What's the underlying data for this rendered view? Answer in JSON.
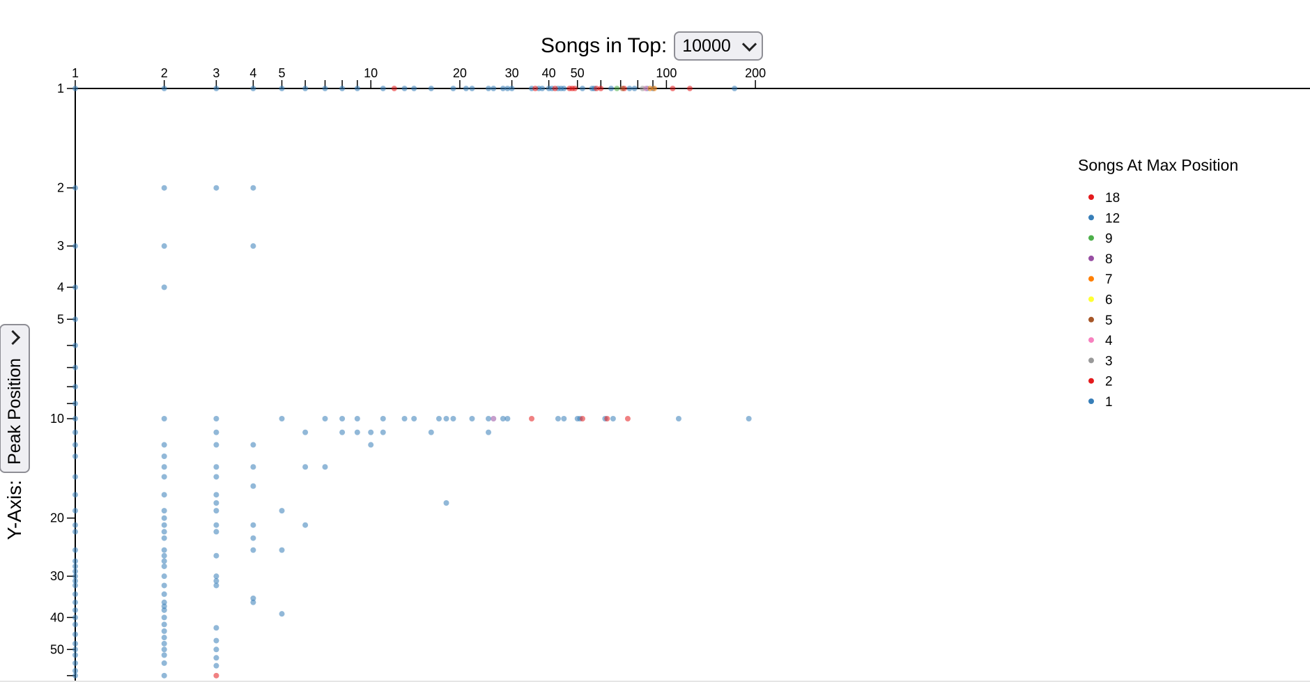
{
  "controls": {
    "top_label": "Songs in Top:",
    "top_value": "10000",
    "side_label": "Y-Axis:",
    "side_value": "Peak Position"
  },
  "chart_data": {
    "type": "scatter",
    "title": "",
    "xlabel": "",
    "ylabel": "Peak Position",
    "x_scale": "log",
    "y_scale": "log",
    "xlim": [
      1,
      200
    ],
    "ylim": [
      1,
      60
    ],
    "x_ticks_labeled": [
      1,
      2,
      3,
      4,
      5,
      10,
      20,
      30,
      40,
      50,
      100,
      200
    ],
    "x_ticks_minor": [
      6,
      7,
      8,
      9,
      60,
      70,
      80,
      90
    ],
    "y_ticks_labeled": [
      1,
      2,
      3,
      4,
      5,
      10,
      20,
      30,
      40,
      50
    ],
    "y_ticks_minor": [
      6,
      7,
      8,
      9,
      60
    ],
    "legend": {
      "title": "Songs At Max Position",
      "placement": "right",
      "entries": [
        {
          "label": "18",
          "color": "#e41a1c"
        },
        {
          "label": "12",
          "color": "#377eb8"
        },
        {
          "label": "9",
          "color": "#4daf4a"
        },
        {
          "label": "8",
          "color": "#984ea3"
        },
        {
          "label": "7",
          "color": "#ff7f00"
        },
        {
          "label": "6",
          "color": "#ffff33"
        },
        {
          "label": "5",
          "color": "#a65628"
        },
        {
          "label": "4",
          "color": "#f781bf"
        },
        {
          "label": "3",
          "color": "#999999"
        },
        {
          "label": "2",
          "color": "#e41a1c"
        },
        {
          "label": "1",
          "color": "#377eb8"
        }
      ]
    },
    "series": [
      {
        "group": "1",
        "color": "#377eb8",
        "points": [
          [
            1,
            1
          ],
          [
            2,
            1
          ],
          [
            3,
            1
          ],
          [
            4,
            1
          ],
          [
            5,
            1
          ],
          [
            6,
            1
          ],
          [
            7,
            1
          ],
          [
            8,
            1
          ],
          [
            9,
            1
          ],
          [
            11,
            1
          ],
          [
            13,
            1
          ],
          [
            14,
            1
          ],
          [
            16,
            1
          ],
          [
            19,
            1
          ],
          [
            21,
            1
          ],
          [
            22,
            1
          ],
          [
            25,
            1
          ],
          [
            26,
            1
          ],
          [
            28,
            1
          ],
          [
            29,
            1
          ],
          [
            30,
            1
          ],
          [
            35,
            1
          ],
          [
            37,
            1
          ],
          [
            38,
            1
          ],
          [
            40,
            1
          ],
          [
            41,
            1
          ],
          [
            43,
            1
          ],
          [
            44,
            1
          ],
          [
            45,
            1
          ],
          [
            52,
            1
          ],
          [
            56,
            1
          ],
          [
            57,
            1
          ],
          [
            65,
            1
          ],
          [
            75,
            1
          ],
          [
            78,
            1
          ],
          [
            86,
            1
          ],
          [
            90,
            1
          ],
          [
            170,
            1
          ],
          [
            1,
            2
          ],
          [
            1,
            3
          ],
          [
            1,
            4
          ],
          [
            1,
            5
          ],
          [
            1,
            6
          ],
          [
            1,
            7
          ],
          [
            1,
            8
          ],
          [
            1,
            9
          ],
          [
            1,
            10
          ],
          [
            1,
            11
          ],
          [
            1,
            12
          ],
          [
            1,
            13
          ],
          [
            1,
            15
          ],
          [
            1,
            17
          ],
          [
            1,
            19
          ],
          [
            1,
            21
          ],
          [
            1,
            22
          ],
          [
            1,
            25
          ],
          [
            1,
            27
          ],
          [
            1,
            28
          ],
          [
            1,
            29
          ],
          [
            1,
            30
          ],
          [
            1,
            31
          ],
          [
            1,
            32
          ],
          [
            1,
            34
          ],
          [
            1,
            36
          ],
          [
            1,
            38
          ],
          [
            1,
            40
          ],
          [
            1,
            42
          ],
          [
            1,
            45
          ],
          [
            1,
            48
          ],
          [
            1,
            50
          ],
          [
            1,
            52
          ],
          [
            1,
            55
          ],
          [
            1,
            58
          ],
          [
            1,
            60
          ],
          [
            2,
            2
          ],
          [
            2,
            3
          ],
          [
            2,
            4
          ],
          [
            2,
            10
          ],
          [
            2,
            12
          ],
          [
            2,
            13
          ],
          [
            2,
            14
          ],
          [
            2,
            15
          ],
          [
            2,
            17
          ],
          [
            2,
            19
          ],
          [
            2,
            20
          ],
          [
            2,
            21
          ],
          [
            2,
            22
          ],
          [
            2,
            23
          ],
          [
            2,
            25
          ],
          [
            2,
            26
          ],
          [
            2,
            27
          ],
          [
            2,
            28
          ],
          [
            2,
            30
          ],
          [
            2,
            32
          ],
          [
            2,
            34
          ],
          [
            2,
            36
          ],
          [
            2,
            37
          ],
          [
            2,
            38
          ],
          [
            2,
            40
          ],
          [
            2,
            42
          ],
          [
            2,
            44
          ],
          [
            2,
            46
          ],
          [
            2,
            48
          ],
          [
            2,
            50
          ],
          [
            2,
            52
          ],
          [
            2,
            55
          ],
          [
            2,
            60
          ],
          [
            3,
            2
          ],
          [
            3,
            10
          ],
          [
            3,
            11
          ],
          [
            3,
            12
          ],
          [
            3,
            14
          ],
          [
            3,
            15
          ],
          [
            3,
            17
          ],
          [
            3,
            18
          ],
          [
            3,
            19
          ],
          [
            3,
            21
          ],
          [
            3,
            22
          ],
          [
            3,
            26
          ],
          [
            3,
            30
          ],
          [
            3,
            31
          ],
          [
            3,
            32
          ],
          [
            3,
            43
          ],
          [
            3,
            47
          ],
          [
            3,
            50
          ],
          [
            3,
            53
          ],
          [
            3,
            56
          ],
          [
            4,
            2
          ],
          [
            4,
            3
          ],
          [
            4,
            12
          ],
          [
            4,
            14
          ],
          [
            4,
            16
          ],
          [
            4,
            21
          ],
          [
            4,
            23
          ],
          [
            4,
            25
          ],
          [
            4,
            35
          ],
          [
            4,
            36
          ],
          [
            5,
            10
          ],
          [
            5,
            19
          ],
          [
            5,
            25
          ],
          [
            5,
            39
          ],
          [
            6,
            11
          ],
          [
            6,
            14
          ],
          [
            6,
            21
          ],
          [
            7,
            10
          ],
          [
            7,
            14
          ],
          [
            8,
            10
          ],
          [
            8,
            11
          ],
          [
            9,
            10
          ],
          [
            9,
            11
          ],
          [
            10,
            11
          ],
          [
            10,
            12
          ],
          [
            11,
            10
          ],
          [
            11,
            11
          ],
          [
            13,
            10
          ],
          [
            14,
            10
          ],
          [
            16,
            11
          ],
          [
            17,
            10
          ],
          [
            18,
            10
          ],
          [
            18,
            18
          ],
          [
            19,
            10
          ],
          [
            22,
            10
          ],
          [
            25,
            10
          ],
          [
            25,
            11
          ],
          [
            28,
            10
          ],
          [
            29,
            10
          ],
          [
            43,
            10
          ],
          [
            45,
            10
          ],
          [
            50,
            10
          ],
          [
            51,
            10
          ],
          [
            62,
            10
          ],
          [
            66,
            10
          ],
          [
            110,
            10
          ],
          [
            190,
            10
          ]
        ]
      },
      {
        "group": "2",
        "color": "#e41a1c",
        "points": [
          [
            12,
            1
          ],
          [
            36,
            1
          ],
          [
            42,
            1
          ],
          [
            47,
            1
          ],
          [
            48,
            1
          ],
          [
            49,
            1
          ],
          [
            58,
            1
          ],
          [
            60,
            1
          ],
          [
            72,
            1
          ],
          [
            105,
            1
          ],
          [
            120,
            1
          ],
          [
            35,
            10
          ],
          [
            52,
            10
          ],
          [
            63,
            10
          ],
          [
            74,
            10
          ],
          [
            3,
            60
          ]
        ]
      },
      {
        "group": "9",
        "color": "#4daf4a",
        "points": [
          [
            68,
            1
          ]
        ]
      },
      {
        "group": "8",
        "color": "#984ea3",
        "points": [
          [
            26,
            10
          ]
        ]
      },
      {
        "group": "7",
        "color": "#ff7f00",
        "points": [
          [
            88,
            1
          ],
          [
            91,
            1
          ]
        ]
      },
      {
        "group": "5",
        "color": "#a65628",
        "points": [
          [
            71,
            1
          ]
        ]
      },
      {
        "group": "4",
        "color": "#f781bf",
        "points": [
          [
            85,
            1
          ]
        ]
      },
      {
        "group": "3",
        "color": "#999999",
        "points": [
          [
            83,
            1
          ]
        ]
      }
    ]
  }
}
